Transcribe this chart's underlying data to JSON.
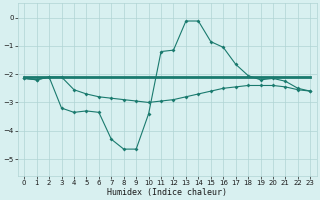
{
  "xlabel": "Humidex (Indice chaleur)",
  "bg_color": "#d8f0f0",
  "grid_color": "#b0d4d4",
  "line_color": "#1a7a6e",
  "xlim": [
    -0.5,
    23.5
  ],
  "ylim": [
    -5.6,
    0.5
  ],
  "yticks": [
    0,
    -1,
    -2,
    -3,
    -4,
    -5
  ],
  "xticks": [
    0,
    1,
    2,
    3,
    4,
    5,
    6,
    7,
    8,
    9,
    10,
    11,
    12,
    13,
    14,
    15,
    16,
    17,
    18,
    19,
    20,
    21,
    22,
    23
  ],
  "line1_x": [
    0,
    1,
    2,
    3,
    4,
    5,
    6,
    7,
    8,
    9,
    10,
    11,
    12,
    13,
    14,
    15,
    16,
    17,
    18,
    19,
    20,
    21,
    22,
    23
  ],
  "line1_y": [
    -2.1,
    -2.1,
    -2.1,
    -2.1,
    -2.1,
    -2.1,
    -2.1,
    -2.1,
    -2.1,
    -2.1,
    -2.1,
    -2.1,
    -2.1,
    -2.1,
    -2.1,
    -2.1,
    -2.1,
    -2.1,
    -2.1,
    -2.1,
    -2.1,
    -2.1,
    -2.1,
    -2.1
  ],
  "line2_x": [
    0,
    1,
    2,
    3,
    4,
    5,
    6,
    7,
    8,
    9,
    10,
    11,
    12,
    13,
    14,
    15,
    16,
    17,
    18,
    19,
    20,
    21,
    22,
    23
  ],
  "line2_y": [
    -2.15,
    -2.2,
    -2.1,
    -2.1,
    -2.55,
    -2.7,
    -2.8,
    -2.85,
    -2.9,
    -2.95,
    -3.0,
    -2.95,
    -2.9,
    -2.8,
    -2.7,
    -2.6,
    -2.5,
    -2.45,
    -2.4,
    -2.4,
    -2.4,
    -2.45,
    -2.55,
    -2.6
  ],
  "line3_x": [
    0,
    1,
    2,
    3,
    4,
    5,
    6,
    7,
    8,
    9,
    10,
    11,
    12,
    13,
    14,
    15,
    16,
    17,
    18,
    19,
    20,
    21,
    22,
    23
  ],
  "line3_y": [
    -2.15,
    -2.2,
    -2.1,
    -3.2,
    -3.35,
    -3.3,
    -3.35,
    -4.3,
    -4.65,
    -4.65,
    -3.4,
    -1.2,
    -1.15,
    -0.12,
    -0.12,
    -0.85,
    -1.05,
    -1.65,
    -2.05,
    -2.2,
    -2.15,
    -2.25,
    -2.5,
    -2.6
  ]
}
